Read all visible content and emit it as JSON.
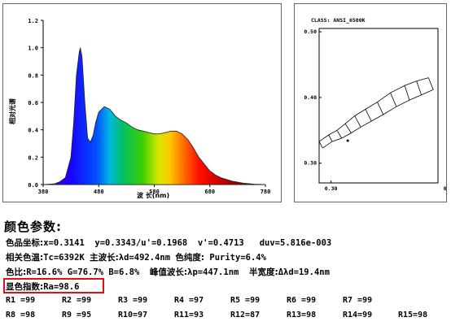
{
  "spectrum_chart": {
    "ylabel": "相对光谱",
    "xlabel": "波 长(nm)",
    "x_ticks": [
      "380",
      "480",
      "580",
      "680",
      "780"
    ],
    "y_ticks": [
      "0.0",
      "0.2",
      "0.4",
      "0.6",
      "0.8",
      "1.0",
      "1.2"
    ]
  },
  "cie_chart": {
    "title": "CLASS: ANSI_6500K",
    "x_ticks": [
      "0.30",
      "0.40"
    ],
    "y_ticks": [
      "0.50",
      "0.40",
      "0.30"
    ]
  },
  "chart_data": [
    {
      "type": "area",
      "xlabel": "波 长(nm)",
      "ylabel": "相对光谱",
      "xlim": [
        380,
        780
      ],
      "ylim": [
        0,
        1.2
      ],
      "x": [
        380,
        400,
        410,
        420,
        430,
        435,
        440,
        445,
        447,
        450,
        455,
        460,
        465,
        470,
        475,
        480,
        490,
        500,
        510,
        520,
        530,
        540,
        550,
        560,
        570,
        580,
        590,
        600,
        610,
        620,
        630,
        640,
        650,
        660,
        670,
        680,
        690,
        700,
        720,
        740,
        760,
        780
      ],
      "y": [
        0,
        0.005,
        0.02,
        0.05,
        0.2,
        0.45,
        0.8,
        0.97,
        1.0,
        0.93,
        0.6,
        0.34,
        0.31,
        0.36,
        0.46,
        0.53,
        0.57,
        0.55,
        0.5,
        0.47,
        0.45,
        0.42,
        0.4,
        0.39,
        0.38,
        0.37,
        0.37,
        0.38,
        0.39,
        0.39,
        0.37,
        0.33,
        0.27,
        0.2,
        0.15,
        0.1,
        0.07,
        0.05,
        0.025,
        0.01,
        0.003,
        0
      ]
    },
    {
      "type": "line",
      "title": "CLASS: ANSI_6500K",
      "xlim": [
        0.29,
        0.39
      ],
      "ylim": [
        0.27,
        0.505
      ],
      "quadrangles_upper": [
        [
          0.29,
          0.333
        ],
        [
          0.298,
          0.343
        ],
        [
          0.305,
          0.35
        ],
        [
          0.312,
          0.36
        ],
        [
          0.32,
          0.372
        ],
        [
          0.329,
          0.382
        ],
        [
          0.339,
          0.393
        ],
        [
          0.35,
          0.407
        ],
        [
          0.362,
          0.418
        ],
        [
          0.372,
          0.425
        ],
        [
          0.382,
          0.43
        ]
      ],
      "quadrangles_lower": [
        [
          0.293,
          0.323
        ],
        [
          0.301,
          0.333
        ],
        [
          0.309,
          0.338
        ],
        [
          0.317,
          0.346
        ],
        [
          0.325,
          0.355
        ],
        [
          0.334,
          0.364
        ],
        [
          0.344,
          0.374
        ],
        [
          0.355,
          0.386
        ],
        [
          0.366,
          0.396
        ],
        [
          0.376,
          0.404
        ],
        [
          0.386,
          0.412
        ]
      ],
      "measured_point": {
        "x": 0.3141,
        "y": 0.3343
      }
    }
  ],
  "params": {
    "title": "颜色参数:",
    "line1_label": "色品坐标:",
    "line1_text": "x=0.3141  y=0.3343/u'=0.1968  v'=0.4713   duv=5.816e-003",
    "line2_label": "相关色温:",
    "line2_text": "Tc=6392K ",
    "line2_label2": "主波长:",
    "line2_text2": "λd=492.4nm ",
    "line2_label3": "色纯度:",
    "line2_text3": " Purity=6.4%",
    "line3_label": "色比:",
    "line3_text": "R=16.6% G=76.7% B=6.8%  ",
    "line3_label2": "峰值波长:",
    "line3_text2": "λp=447.1nm  ",
    "line3_label3": "半宽度:",
    "line3_text3": "Δλd=19.4nm",
    "line4_label": "显色指数:",
    "line4_text": "Ra=98.6"
  },
  "ri": [
    [
      "R1 =99",
      "R2 =99",
      "R3 =99",
      "R4 =97",
      "R5 =99",
      "R6 =99",
      "R7 =99",
      ""
    ],
    [
      "R8 =98",
      "R9 =95",
      "R10=97",
      "R11=93",
      "R12=87",
      "R13=98",
      "R14=99",
      "R15=98"
    ]
  ]
}
